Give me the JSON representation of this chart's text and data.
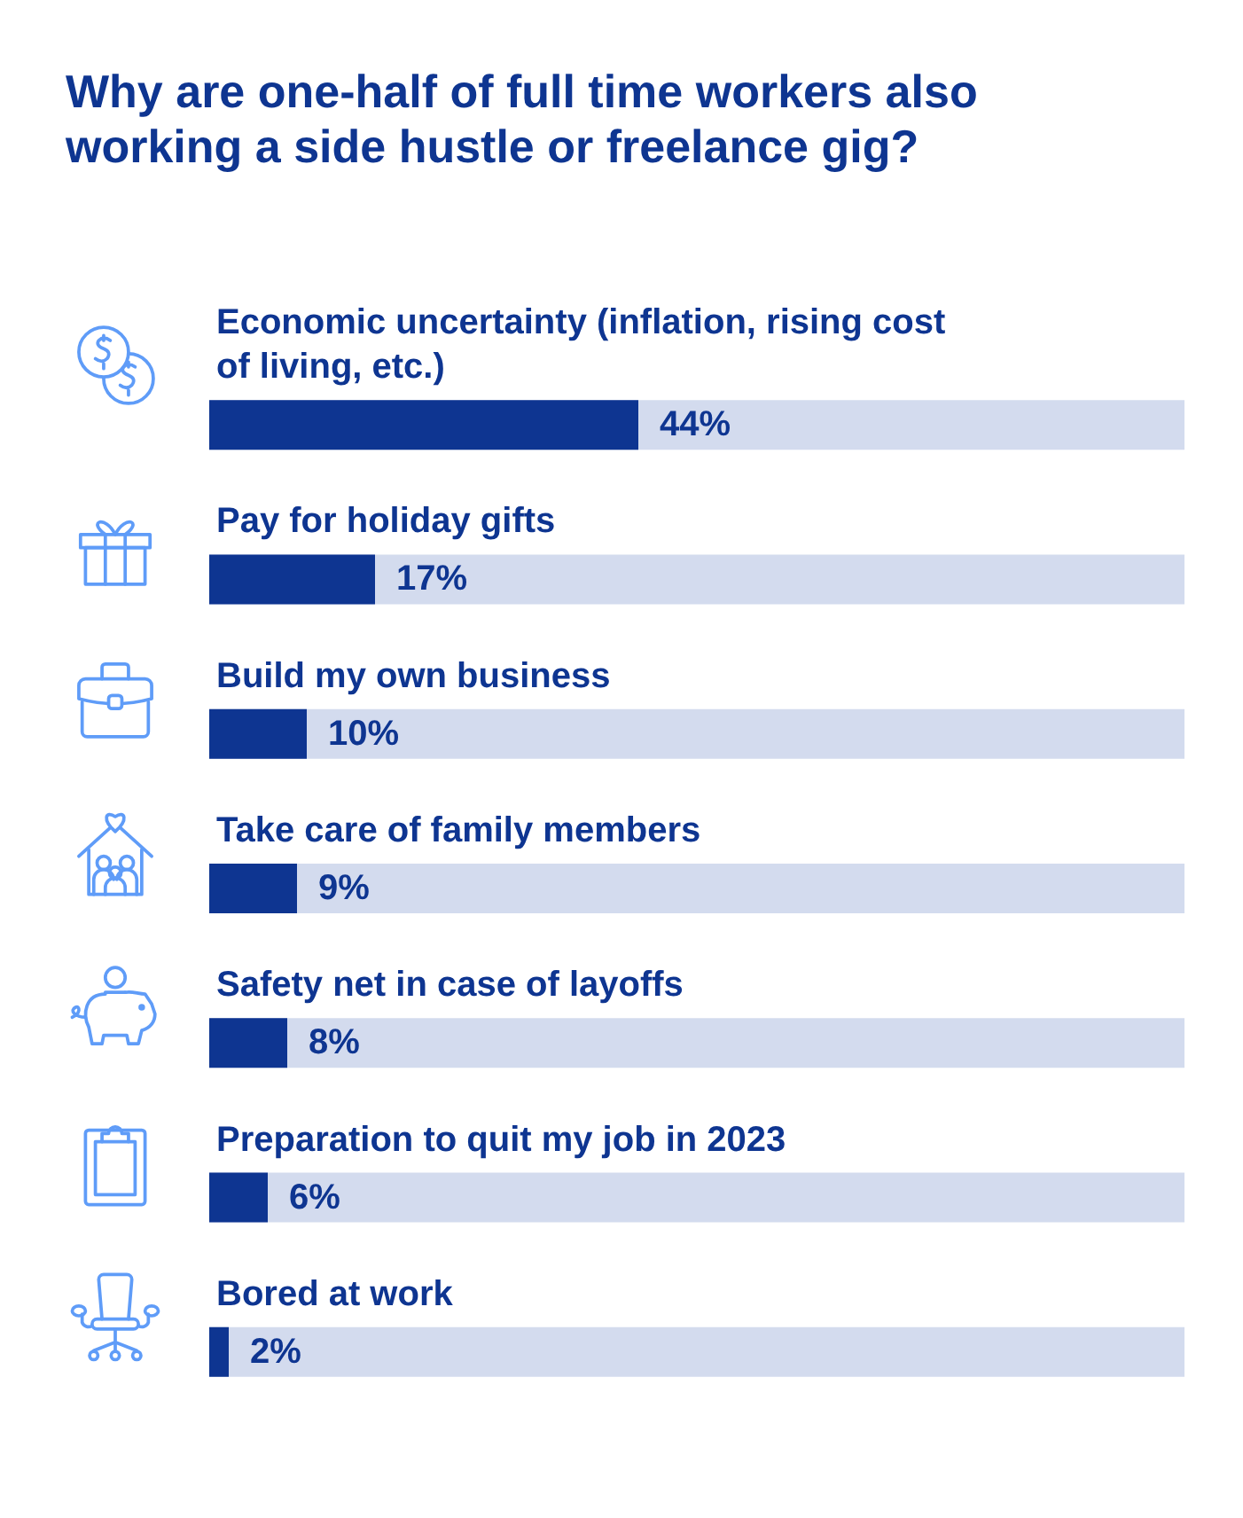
{
  "chart_data": {
    "type": "bar",
    "orientation": "horizontal",
    "title": "Why are one-half of full time workers also working a side hustle or freelance gig?",
    "categories": [
      "Economic uncertainty (inflation, rising cost of living, etc.)",
      "Pay for holiday gifts",
      "Build my own business",
      "Take care of family members",
      "Safety net in case of layoffs",
      "Preparation to quit my job in 2023",
      "Bored at work"
    ],
    "values": [
      44,
      17,
      10,
      9,
      8,
      6,
      2
    ],
    "value_labels": [
      "44%",
      "17%",
      "10%",
      "9%",
      "8%",
      "6%",
      "2%"
    ],
    "color": "#0e3591",
    "xlim": [
      0,
      100
    ],
    "tick_labels": "y",
    "grid": false
  }
}
